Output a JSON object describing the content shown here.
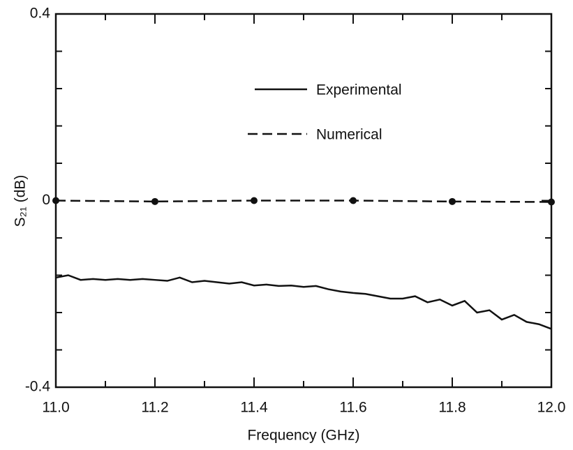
{
  "chart_data": {
    "type": "line",
    "xlabel": "Frequency (GHz)",
    "ylabel": "S₂₁ (dB)",
    "xlim": [
      11.0,
      12.0
    ],
    "ylim": [
      -0.4,
      0.4
    ],
    "xticks": [
      {
        "value": 11.0,
        "label": "11.0"
      },
      11.2,
      11.4,
      11.6,
      11.8,
      {
        "value": 12.0,
        "label": "12.0"
      }
    ],
    "xminorticks": [
      11.1,
      11.3,
      11.5,
      11.7,
      11.9
    ],
    "yticks": [
      0.4,
      0,
      -0.4
    ],
    "yminorticks": [
      0.32,
      0.24,
      0.16,
      0.08,
      -0.08,
      -0.16,
      -0.24,
      -0.32
    ],
    "series": [
      {
        "name": "Experimental",
        "color": "#111111",
        "style": "solid",
        "x": [
          11.0,
          11.025,
          11.05,
          11.075,
          11.1,
          11.125,
          11.15,
          11.175,
          11.2,
          11.225,
          11.25,
          11.275,
          11.3,
          11.325,
          11.35,
          11.375,
          11.4,
          11.425,
          11.45,
          11.475,
          11.5,
          11.525,
          11.55,
          11.575,
          11.6,
          11.625,
          11.65,
          11.675,
          11.7,
          11.725,
          11.75,
          11.775,
          11.8,
          11.825,
          11.85,
          11.875,
          11.9,
          11.925,
          11.95,
          11.975,
          12.0
        ],
        "values": [
          -0.165,
          -0.16,
          -0.17,
          -0.168,
          -0.17,
          -0.168,
          -0.17,
          -0.168,
          -0.17,
          -0.172,
          -0.165,
          -0.175,
          -0.172,
          -0.175,
          -0.178,
          -0.175,
          -0.182,
          -0.18,
          -0.183,
          -0.182,
          -0.185,
          -0.183,
          -0.19,
          -0.195,
          -0.198,
          -0.2,
          -0.205,
          -0.21,
          -0.21,
          -0.205,
          -0.218,
          -0.212,
          -0.225,
          -0.215,
          -0.24,
          -0.235,
          -0.255,
          -0.245,
          -0.26,
          -0.265,
          -0.275
        ]
      },
      {
        "name": "Numerical",
        "color": "#111111",
        "style": "dashed",
        "markers": true,
        "x": [
          11.0,
          11.2,
          11.4,
          11.6,
          11.8,
          12.0
        ],
        "values": [
          0,
          -0.002,
          0,
          0,
          -0.002,
          -0.003
        ]
      }
    ]
  }
}
